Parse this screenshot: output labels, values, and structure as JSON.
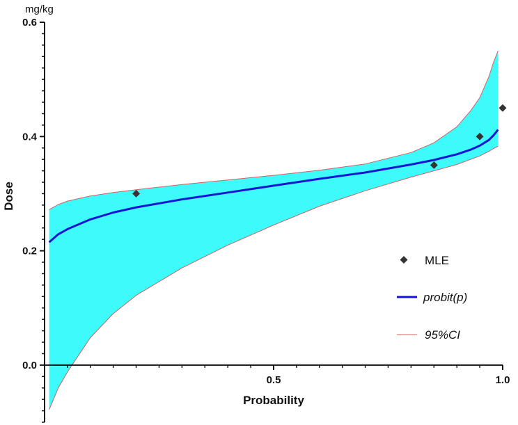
{
  "chart_data": {
    "type": "line",
    "title": "",
    "xlabel": "Probability",
    "ylabel": "Dose",
    "y_unit": "mg/kg",
    "xlim": [
      0,
      1.0
    ],
    "ylim": [
      -0.1,
      0.6
    ],
    "x_ticks": [
      0.5,
      1.0
    ],
    "x_tick_labels": [
      "0.5",
      "1.0"
    ],
    "y_ticks": [
      0.0,
      0.2,
      0.4,
      0.6
    ],
    "y_tick_labels": [
      "0.0",
      "0.2",
      "0.4",
      "0.6"
    ],
    "grid": false,
    "legend_position": "right",
    "legend": [
      {
        "label": "MLE",
        "kind": "marker",
        "style": "normal"
      },
      {
        "label": "probit(p)",
        "kind": "line",
        "style": "italic"
      },
      {
        "label": "95%CI",
        "kind": "thin-line",
        "style": "italic"
      }
    ],
    "series": [
      {
        "name": "probit(p)",
        "kind": "line",
        "color": "#1414d4",
        "x": [
          0.01,
          0.03,
          0.05,
          0.1,
          0.15,
          0.2,
          0.3,
          0.4,
          0.5,
          0.6,
          0.7,
          0.8,
          0.85,
          0.9,
          0.93,
          0.95,
          0.97,
          0.98,
          0.99
        ],
        "y": [
          0.215,
          0.229,
          0.238,
          0.255,
          0.267,
          0.276,
          0.29,
          0.302,
          0.314,
          0.326,
          0.337,
          0.351,
          0.359,
          0.369,
          0.377,
          0.384,
          0.394,
          0.402,
          0.412
        ]
      },
      {
        "name": "95%CI upper",
        "kind": "ci",
        "color": "#d06060",
        "x": [
          0.01,
          0.03,
          0.05,
          0.1,
          0.15,
          0.2,
          0.3,
          0.4,
          0.5,
          0.6,
          0.7,
          0.8,
          0.85,
          0.9,
          0.93,
          0.95,
          0.97,
          0.98,
          0.99
        ],
        "y": [
          0.272,
          0.281,
          0.287,
          0.296,
          0.302,
          0.307,
          0.316,
          0.324,
          0.332,
          0.341,
          0.352,
          0.372,
          0.389,
          0.417,
          0.445,
          0.468,
          0.505,
          0.53,
          0.55
        ]
      },
      {
        "name": "95%CI lower",
        "kind": "ci",
        "color": "#d06060",
        "x": [
          0.01,
          0.03,
          0.05,
          0.1,
          0.15,
          0.2,
          0.3,
          0.4,
          0.5,
          0.6,
          0.7,
          0.8,
          0.85,
          0.9,
          0.93,
          0.95,
          0.97,
          0.98,
          0.99
        ],
        "y": [
          -0.078,
          -0.04,
          -0.012,
          0.048,
          0.09,
          0.122,
          0.17,
          0.21,
          0.245,
          0.278,
          0.305,
          0.329,
          0.34,
          0.351,
          0.36,
          0.366,
          0.374,
          0.379,
          0.383
        ]
      },
      {
        "name": "MLE",
        "kind": "scatter",
        "color": "#333333",
        "x": [
          0.2,
          0.85,
          0.95,
          1.0
        ],
        "y": [
          0.3,
          0.35,
          0.4,
          0.45
        ]
      }
    ],
    "ci_fill_color": "#3dfbfb"
  }
}
